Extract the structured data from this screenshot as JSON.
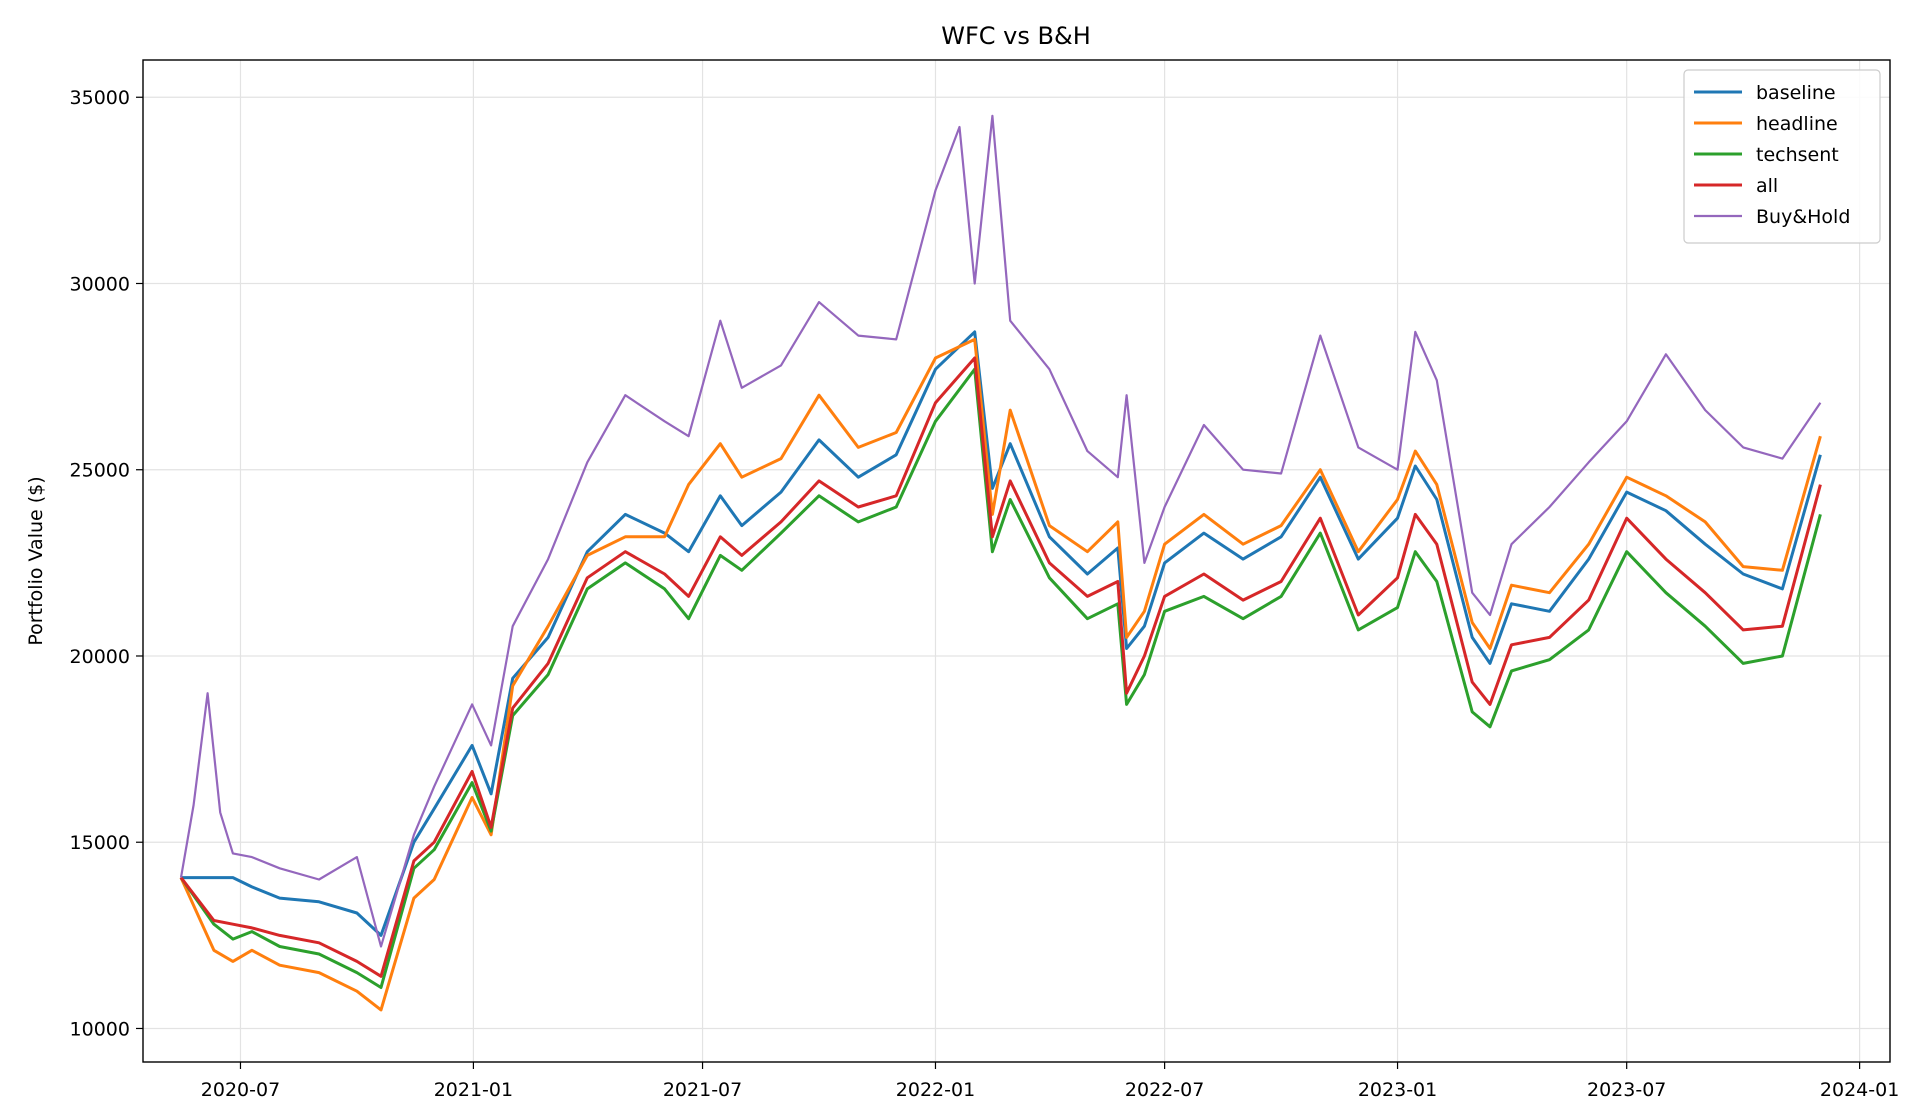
{
  "chart_data": {
    "type": "line",
    "title": "WFC vs B&H",
    "xlabel": "",
    "ylabel": "Portfolio Value ($)",
    "xlim": [
      "2020-04-15",
      "2024-01-25"
    ],
    "ylim": [
      9100,
      36000
    ],
    "x_ticks": [
      "2020-07-01",
      "2021-01-01",
      "2021-07-01",
      "2022-01-01",
      "2022-07-01",
      "2023-01-01",
      "2023-07-01",
      "2024-01-01"
    ],
    "x_tick_labels": [
      "2020-07",
      "2021-01",
      "2021-07",
      "2022-01",
      "2022-07",
      "2023-01",
      "2023-07",
      "2024-01"
    ],
    "y_ticks": [
      10000,
      15000,
      20000,
      25000,
      30000,
      35000
    ],
    "y_tick_labels": [
      "10000",
      "15000",
      "20000",
      "25000",
      "30000",
      "35000"
    ],
    "grid": true,
    "legend_position": "upper right",
    "series": [
      {
        "name": "baseline",
        "color": "#1f77b4",
        "x": [
          "2020-05-15",
          "2020-06-10",
          "2020-06-25",
          "2020-07-10",
          "2020-08-01",
          "2020-09-01",
          "2020-10-01",
          "2020-10-20",
          "2020-11-15",
          "2020-12-01",
          "2020-12-31",
          "2021-01-15",
          "2021-02-01",
          "2021-03-01",
          "2021-04-01",
          "2021-05-01",
          "2021-06-01",
          "2021-06-20",
          "2021-07-15",
          "2021-08-01",
          "2021-09-01",
          "2021-10-01",
          "2021-11-01",
          "2021-12-01",
          "2022-01-01",
          "2022-02-01",
          "2022-02-15",
          "2022-03-01",
          "2022-04-01",
          "2022-05-01",
          "2022-05-25",
          "2022-06-01",
          "2022-06-15",
          "2022-07-01",
          "2022-08-01",
          "2022-09-01",
          "2022-10-01",
          "2022-11-01",
          "2022-12-01",
          "2023-01-01",
          "2023-01-15",
          "2023-02-01",
          "2023-03-01",
          "2023-03-15",
          "2023-04-01",
          "2023-05-01",
          "2023-06-01",
          "2023-07-01",
          "2023-08-01",
          "2023-09-01",
          "2023-10-01",
          "2023-11-01",
          "2023-12-01"
        ],
        "y": [
          14050,
          14050,
          14050,
          13800,
          13500,
          13400,
          13100,
          12500,
          15000,
          15900,
          17600,
          16300,
          19400,
          20500,
          22800,
          23800,
          23300,
          22800,
          24300,
          23500,
          24400,
          25800,
          24800,
          25400,
          27700,
          28700,
          24500,
          25700,
          23200,
          22200,
          22900,
          20200,
          20800,
          22500,
          23300,
          22600,
          23200,
          24800,
          22600,
          23700,
          25100,
          24200,
          20500,
          19800,
          21400,
          21200,
          22600,
          24400,
          23900,
          23000,
          22200,
          21800,
          25400
        ]
      },
      {
        "name": "headline",
        "color": "#ff7f0e",
        "x": [
          "2020-05-15",
          "2020-06-10",
          "2020-06-25",
          "2020-07-10",
          "2020-08-01",
          "2020-09-01",
          "2020-10-01",
          "2020-10-20",
          "2020-11-15",
          "2020-12-01",
          "2020-12-31",
          "2021-01-15",
          "2021-02-01",
          "2021-03-01",
          "2021-04-01",
          "2021-05-01",
          "2021-06-01",
          "2021-06-20",
          "2021-07-15",
          "2021-08-01",
          "2021-09-01",
          "2021-10-01",
          "2021-11-01",
          "2021-12-01",
          "2022-01-01",
          "2022-02-01",
          "2022-02-15",
          "2022-03-01",
          "2022-04-01",
          "2022-05-01",
          "2022-05-25",
          "2022-06-01",
          "2022-06-15",
          "2022-07-01",
          "2022-08-01",
          "2022-09-01",
          "2022-10-01",
          "2022-11-01",
          "2022-12-01",
          "2023-01-01",
          "2023-01-15",
          "2023-02-01",
          "2023-03-01",
          "2023-03-15",
          "2023-04-01",
          "2023-05-01",
          "2023-06-01",
          "2023-07-01",
          "2023-08-01",
          "2023-09-01",
          "2023-10-01",
          "2023-11-01",
          "2023-12-01"
        ],
        "y": [
          14050,
          12100,
          11800,
          12100,
          11700,
          11500,
          11000,
          10500,
          13500,
          14000,
          16200,
          15200,
          19200,
          20800,
          22700,
          23200,
          23200,
          24600,
          25700,
          24800,
          25300,
          27000,
          25600,
          26000,
          28000,
          28500,
          23800,
          26600,
          23500,
          22800,
          23600,
          20500,
          21200,
          23000,
          23800,
          23000,
          23500,
          25000,
          22800,
          24200,
          25500,
          24600,
          20900,
          20200,
          21900,
          21700,
          23000,
          24800,
          24300,
          23600,
          22400,
          22300,
          25900
        ]
      },
      {
        "name": "techsent",
        "color": "#2ca02c",
        "x": [
          "2020-05-15",
          "2020-06-10",
          "2020-06-25",
          "2020-07-10",
          "2020-08-01",
          "2020-09-01",
          "2020-10-01",
          "2020-10-20",
          "2020-11-15",
          "2020-12-01",
          "2020-12-31",
          "2021-01-15",
          "2021-02-01",
          "2021-03-01",
          "2021-04-01",
          "2021-05-01",
          "2021-06-01",
          "2021-06-20",
          "2021-07-15",
          "2021-08-01",
          "2021-09-01",
          "2021-10-01",
          "2021-11-01",
          "2021-12-01",
          "2022-01-01",
          "2022-02-01",
          "2022-02-15",
          "2022-03-01",
          "2022-04-01",
          "2022-05-01",
          "2022-05-25",
          "2022-06-01",
          "2022-06-15",
          "2022-07-01",
          "2022-08-01",
          "2022-09-01",
          "2022-10-01",
          "2022-11-01",
          "2022-12-01",
          "2023-01-01",
          "2023-01-15",
          "2023-02-01",
          "2023-03-01",
          "2023-03-15",
          "2023-04-01",
          "2023-05-01",
          "2023-06-01",
          "2023-07-01",
          "2023-08-01",
          "2023-09-01",
          "2023-10-01",
          "2023-11-01",
          "2023-12-01"
        ],
        "y": [
          14050,
          12800,
          12400,
          12600,
          12200,
          12000,
          11500,
          11100,
          14300,
          14800,
          16600,
          15300,
          18400,
          19500,
          21800,
          22500,
          21800,
          21000,
          22700,
          22300,
          23300,
          24300,
          23600,
          24000,
          26300,
          27700,
          22800,
          24200,
          22100,
          21000,
          21400,
          18700,
          19500,
          21200,
          21600,
          21000,
          21600,
          23300,
          20700,
          21300,
          22800,
          22000,
          18500,
          18100,
          19600,
          19900,
          20700,
          22800,
          21700,
          20800,
          19800,
          20000,
          23800
        ]
      },
      {
        "name": "all",
        "color": "#d62728",
        "x": [
          "2020-05-15",
          "2020-06-10",
          "2020-06-25",
          "2020-07-10",
          "2020-08-01",
          "2020-09-01",
          "2020-10-01",
          "2020-10-20",
          "2020-11-15",
          "2020-12-01",
          "2020-12-31",
          "2021-01-15",
          "2021-02-01",
          "2021-03-01",
          "2021-04-01",
          "2021-05-01",
          "2021-06-01",
          "2021-06-20",
          "2021-07-15",
          "2021-08-01",
          "2021-09-01",
          "2021-10-01",
          "2021-11-01",
          "2021-12-01",
          "2022-01-01",
          "2022-02-01",
          "2022-02-15",
          "2022-03-01",
          "2022-04-01",
          "2022-05-01",
          "2022-05-25",
          "2022-06-01",
          "2022-06-15",
          "2022-07-01",
          "2022-08-01",
          "2022-09-01",
          "2022-10-01",
          "2022-11-01",
          "2022-12-01",
          "2023-01-01",
          "2023-01-15",
          "2023-02-01",
          "2023-03-01",
          "2023-03-15",
          "2023-04-01",
          "2023-05-01",
          "2023-06-01",
          "2023-07-01",
          "2023-08-01",
          "2023-09-01",
          "2023-10-01",
          "2023-11-01",
          "2023-12-01"
        ],
        "y": [
          14050,
          12900,
          12800,
          12700,
          12500,
          12300,
          11800,
          11400,
          14500,
          15000,
          16900,
          15400,
          18600,
          19800,
          22100,
          22800,
          22200,
          21600,
          23200,
          22700,
          23600,
          24700,
          24000,
          24300,
          26800,
          28000,
          23200,
          24700,
          22500,
          21600,
          22000,
          19000,
          20000,
          21600,
          22200,
          21500,
          22000,
          23700,
          21100,
          22100,
          23800,
          23000,
          19300,
          18700,
          20300,
          20500,
          21500,
          23700,
          22600,
          21700,
          20700,
          20800,
          24600
        ]
      },
      {
        "name": "Buy&Hold",
        "color": "#9467bd",
        "x": [
          "2020-05-15",
          "2020-05-25",
          "2020-06-05",
          "2020-06-15",
          "2020-06-25",
          "2020-07-10",
          "2020-08-01",
          "2020-09-01",
          "2020-10-01",
          "2020-10-20",
          "2020-11-15",
          "2020-12-01",
          "2020-12-31",
          "2021-01-15",
          "2021-02-01",
          "2021-03-01",
          "2021-04-01",
          "2021-05-01",
          "2021-06-01",
          "2021-06-20",
          "2021-07-15",
          "2021-08-01",
          "2021-09-01",
          "2021-10-01",
          "2021-11-01",
          "2021-12-01",
          "2022-01-01",
          "2022-01-20",
          "2022-02-01",
          "2022-02-15",
          "2022-03-01",
          "2022-04-01",
          "2022-05-01",
          "2022-05-25",
          "2022-06-01",
          "2022-06-15",
          "2022-07-01",
          "2022-08-01",
          "2022-09-01",
          "2022-10-01",
          "2022-11-01",
          "2022-12-01",
          "2023-01-01",
          "2023-01-15",
          "2023-02-01",
          "2023-03-01",
          "2023-03-15",
          "2023-04-01",
          "2023-05-01",
          "2023-06-01",
          "2023-07-01",
          "2023-08-01",
          "2023-09-01",
          "2023-10-01",
          "2023-11-01",
          "2023-12-01"
        ],
        "y": [
          14050,
          16000,
          19000,
          15800,
          14700,
          14600,
          14300,
          14000,
          14600,
          12200,
          15200,
          16500,
          18700,
          17600,
          20800,
          22600,
          25200,
          27000,
          26300,
          25900,
          29000,
          27200,
          27800,
          29500,
          28600,
          28500,
          32500,
          34200,
          30000,
          34500,
          29000,
          27700,
          25500,
          24800,
          27000,
          22500,
          24000,
          26200,
          25000,
          24900,
          28600,
          25600,
          25000,
          28700,
          27400,
          21700,
          21100,
          23000,
          24000,
          25200,
          26300,
          28100,
          26600,
          25600,
          25300,
          26800
        ]
      }
    ]
  }
}
